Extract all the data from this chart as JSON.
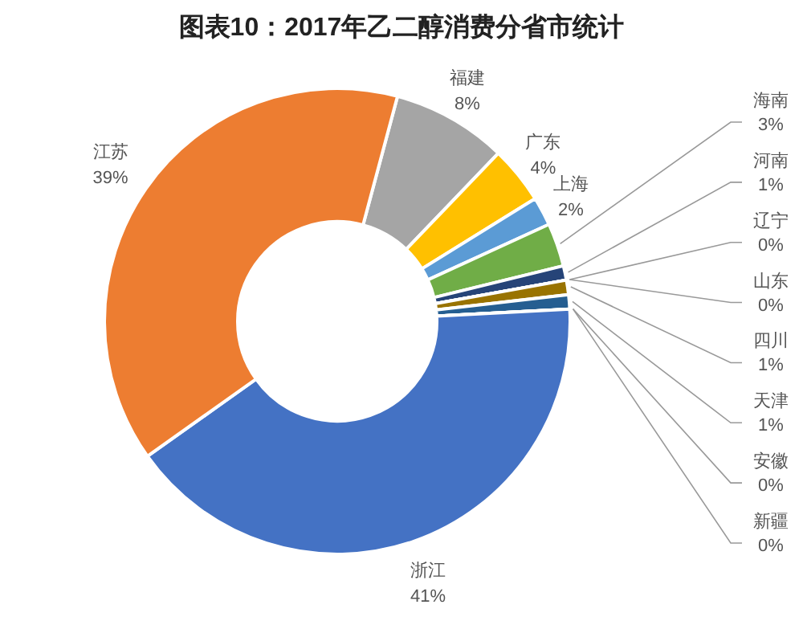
{
  "chart_data": {
    "type": "donut",
    "title": "图表10：2017年乙二醇消费分省市统计",
    "categories": [
      "福建",
      "广东",
      "上海",
      "海南",
      "河南",
      "辽宁",
      "山东",
      "四川",
      "天津",
      "安徽",
      "新疆",
      "浙江",
      "江苏"
    ],
    "values": [
      8,
      4,
      2,
      3,
      1,
      0,
      0,
      1,
      1,
      0,
      0,
      41,
      39
    ],
    "colors": [
      "#a5a5a5",
      "#ffc000",
      "#5b9bd5",
      "#70ad47",
      "#264478",
      "#9e480e",
      "#636363",
      "#997300",
      "#255e91",
      "#43682b",
      "#698ed0",
      "#4472c4",
      "#ed7d31"
    ],
    "value_labels": [
      "8%",
      "4%",
      "2%",
      "3%",
      "1%",
      "0%",
      "0%",
      "1%",
      "1%",
      "0%",
      "0%",
      "41%",
      "39%"
    ]
  }
}
